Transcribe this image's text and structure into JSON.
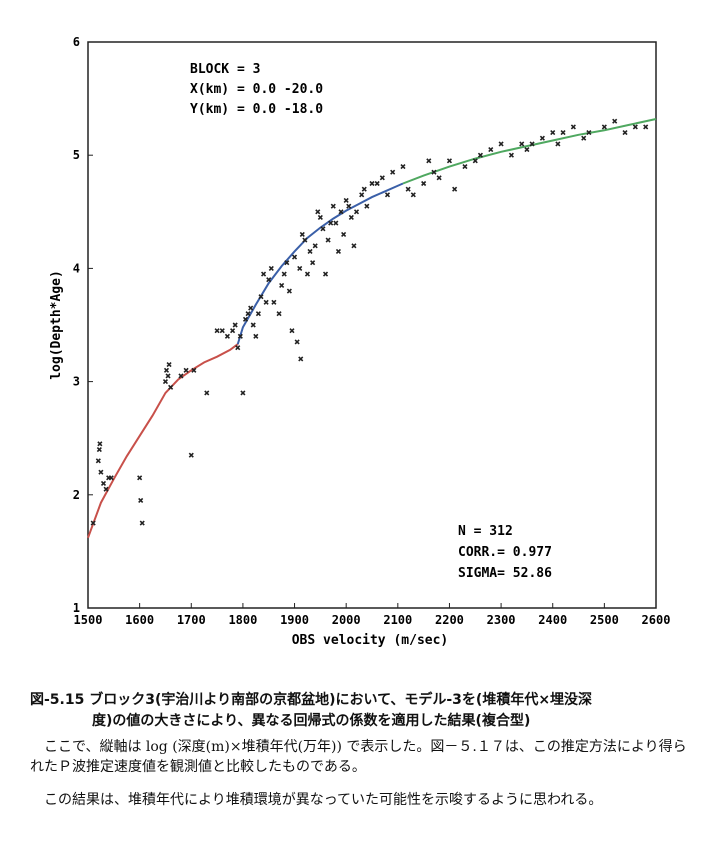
{
  "chart_data": {
    "type": "scatter",
    "xlabel": "OBS velocity (m/sec)",
    "ylabel": "log(Depth*Age)",
    "xlim": [
      1500,
      2600
    ],
    "ylim": [
      1,
      6
    ],
    "xticks": [
      "1500",
      "1600",
      "1700",
      "1800",
      "1900",
      "2000",
      "2100",
      "2200",
      "2300",
      "2400",
      "2500",
      "2600"
    ],
    "yticks": [
      "1",
      "2",
      "3",
      "4",
      "5",
      "6"
    ],
    "block_lines": [
      "BLOCK = 3",
      "X(km) = 0.0   -20.0",
      "Y(km) = 0.0   -18.0"
    ],
    "stats_lines": [
      "N     = 312",
      "CORR.= 0.977",
      "SIGMA= 52.86"
    ],
    "grid": false,
    "series": [
      {
        "color": "#c8504a",
        "x": [
          1500,
          1525,
          1550,
          1575,
          1600,
          1625,
          1650,
          1675,
          1700,
          1725,
          1750,
          1775,
          1790
        ],
        "y": [
          1.62,
          1.93,
          2.14,
          2.34,
          2.52,
          2.7,
          2.9,
          3.02,
          3.1,
          3.17,
          3.22,
          3.28,
          3.33
        ]
      },
      {
        "color": "#3a5fa8",
        "x": [
          1790,
          1800,
          1825,
          1850,
          1875,
          1900,
          1925,
          1950,
          1975,
          2000,
          2025,
          2050,
          2075,
          2100,
          2110
        ],
        "y": [
          3.33,
          3.48,
          3.68,
          3.87,
          4.02,
          4.15,
          4.27,
          4.36,
          4.44,
          4.51,
          4.57,
          4.63,
          4.68,
          4.73,
          4.75
        ]
      },
      {
        "color": "#4fa860",
        "x": [
          2110,
          2150,
          2200,
          2250,
          2300,
          2350,
          2400,
          2450,
          2500,
          2550,
          2600
        ],
        "y": [
          4.75,
          4.82,
          4.9,
          4.97,
          5.03,
          5.08,
          5.13,
          5.18,
          5.22,
          5.27,
          5.32
        ]
      }
    ],
    "points": {
      "x": [
        1510,
        1520,
        1522,
        1523,
        1525,
        1530,
        1535,
        1540,
        1545,
        1600,
        1602,
        1605,
        1650,
        1652,
        1655,
        1657,
        1660,
        1680,
        1690,
        1700,
        1705,
        1730,
        1750,
        1760,
        1770,
        1780,
        1785,
        1790,
        1795,
        1800,
        1805,
        1810,
        1815,
        1820,
        1825,
        1830,
        1835,
        1840,
        1845,
        1850,
        1855,
        1860,
        1870,
        1875,
        1880,
        1885,
        1890,
        1895,
        1900,
        1905,
        1910,
        1912,
        1915,
        1920,
        1925,
        1930,
        1935,
        1940,
        1945,
        1950,
        1955,
        1960,
        1965,
        1970,
        1975,
        1980,
        1985,
        1990,
        1995,
        2000,
        2005,
        2010,
        2015,
        2020,
        2030,
        2035,
        2040,
        2050,
        2060,
        2070,
        2080,
        2090,
        2110,
        2120,
        2130,
        2150,
        2160,
        2170,
        2180,
        2200,
        2210,
        2230,
        2250,
        2260,
        2280,
        2300,
        2320,
        2340,
        2350,
        2360,
        2380,
        2400,
        2410,
        2420,
        2440,
        2460,
        2470,
        2500,
        2520,
        2540,
        2560,
        2580
      ],
      "y": [
        1.75,
        2.3,
        2.4,
        2.45,
        2.2,
        2.1,
        2.05,
        2.15,
        2.15,
        2.15,
        1.95,
        1.75,
        3.0,
        3.1,
        3.05,
        3.15,
        2.95,
        3.05,
        3.1,
        2.35,
        3.1,
        2.9,
        3.45,
        3.45,
        3.4,
        3.45,
        3.5,
        3.3,
        3.4,
        2.9,
        3.55,
        3.6,
        3.65,
        3.5,
        3.4,
        3.6,
        3.75,
        3.95,
        3.7,
        3.9,
        4.0,
        3.7,
        3.6,
        3.85,
        3.95,
        4.05,
        3.8,
        3.45,
        4.1,
        3.35,
        4.0,
        3.2,
        4.3,
        4.25,
        3.95,
        4.15,
        4.05,
        4.2,
        4.5,
        4.45,
        4.35,
        3.95,
        4.25,
        4.4,
        4.55,
        4.4,
        4.15,
        4.5,
        4.3,
        4.6,
        4.55,
        4.45,
        4.2,
        4.5,
        4.65,
        4.7,
        4.55,
        4.75,
        4.75,
        4.8,
        4.65,
        4.85,
        4.9,
        4.7,
        4.65,
        4.75,
        4.95,
        4.85,
        4.8,
        4.95,
        4.7,
        4.9,
        4.95,
        5.0,
        5.05,
        5.1,
        5.0,
        5.1,
        5.05,
        5.1,
        5.15,
        5.2,
        5.1,
        5.2,
        5.25,
        5.15,
        5.2,
        5.25,
        5.3,
        5.2,
        5.25,
        5.25
      ]
    }
  },
  "caption": {
    "line1": "図-5.15  ブロック3(宇治川より南部の京都盆地)において、モデル-3を(堆積年代×埋没深",
    "line2": "度)の値の大きさにより、異なる回帰式の係数を適用した結果(複合型)"
  },
  "body": {
    "p1": "ここで、縦軸は log (深度(m)×堆積年代(万年)) で表示した。図－５.１７は、この推定方法により得られたＰ波推定速度値を観測値と比較したものである。",
    "p2": "この結果は、堆積年代により堆積環境が異なっていた可能性を示唆するように思われる。"
  }
}
